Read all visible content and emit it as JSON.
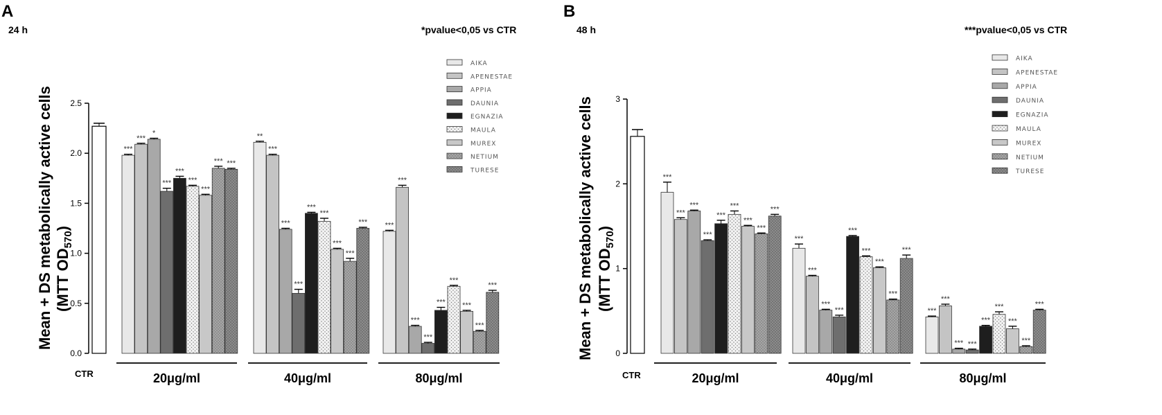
{
  "panels": [
    {
      "letter": "A",
      "time": "24 h",
      "pnote": "*pvalue<0,05 vs CTR"
    },
    {
      "letter": "B",
      "time": "48 h",
      "pnote": "***pvalue<0,05 vs CTR"
    }
  ],
  "ylabel_line1": "Mean + DS metabolically active cells",
  "ylabel_line2_main": "(MTT OD",
  "ylabel_line2_sub": "570",
  "ylabel_line2_end": ")",
  "ctr_label": "CTR",
  "series_colors": {
    "CTR": "#ffffff",
    "AIKA": "#e8e8e8",
    "APENESTAE": "#c4c4c4",
    "APPIA": "#a8a8a8",
    "DAUNIA": "#6e6e6e",
    "EGNAZIA": "#1e1e1e",
    "MAULA": "#eeeeee",
    "MUREX": "#c8c8c8",
    "NETIUM": "#9e9e9e",
    "TURESE": "#858585"
  },
  "chart_data": [
    {
      "type": "bar",
      "title": "24 h",
      "ylabel": "Mean + DS metabolically active cells (MTT OD 570)",
      "ylim": [
        0,
        2.5
      ],
      "yticks": [
        "0.0",
        "0.5",
        "1.0",
        "1.5",
        "2.0",
        "2.5"
      ],
      "control": {
        "name": "CTR",
        "value": 2.27,
        "error": 0.03
      },
      "groups": [
        "20μg/ml",
        "40μg/ml",
        "80μg/ml"
      ],
      "series": [
        {
          "name": "AIKA",
          "values": [
            1.98,
            2.11,
            1.22
          ],
          "errors": [
            0.01,
            0.01,
            0.01
          ],
          "sig": [
            "***",
            "**",
            "***"
          ]
        },
        {
          "name": "APENESTAE",
          "values": [
            2.09,
            1.98,
            1.66
          ],
          "errors": [
            0.01,
            0.01,
            0.02
          ],
          "sig": [
            "***",
            "***",
            "***"
          ]
        },
        {
          "name": "APPIA",
          "values": [
            2.14,
            1.24,
            0.27
          ],
          "errors": [
            0.01,
            0.01,
            0.01
          ],
          "sig": [
            "*",
            "***",
            "***"
          ]
        },
        {
          "name": "DAUNIA",
          "values": [
            1.62,
            0.6,
            0.1
          ],
          "errors": [
            0.03,
            0.04,
            0.01
          ],
          "sig": [
            "***",
            "***",
            "***"
          ]
        },
        {
          "name": "EGNAZIA",
          "values": [
            1.75,
            1.4,
            0.43
          ],
          "errors": [
            0.02,
            0.01,
            0.03
          ],
          "sig": [
            "***",
            "***",
            "***"
          ]
        },
        {
          "name": "MAULA",
          "values": [
            1.67,
            1.32,
            0.67
          ],
          "errors": [
            0.01,
            0.03,
            0.01
          ],
          "sig": [
            "***",
            "***",
            "***"
          ]
        },
        {
          "name": "MUREX",
          "values": [
            1.58,
            1.04,
            0.42
          ],
          "errors": [
            0.01,
            0.01,
            0.01
          ],
          "sig": [
            "***",
            "***",
            "***"
          ]
        },
        {
          "name": "NETIUM",
          "values": [
            1.85,
            0.92,
            0.22
          ],
          "errors": [
            0.02,
            0.03,
            0.01
          ],
          "sig": [
            "***",
            "***",
            "***"
          ]
        },
        {
          "name": "TURESE",
          "values": [
            1.84,
            1.25,
            0.61
          ],
          "errors": [
            0.01,
            0.01,
            0.02
          ],
          "sig": [
            "***",
            "***",
            "***"
          ]
        }
      ]
    },
    {
      "type": "bar",
      "title": "48 h",
      "ylabel": "Mean + DS metabolically active cells (MTT OD 570)",
      "ylim": [
        0,
        3
      ],
      "yticks": [
        "0",
        "1",
        "2",
        "3"
      ],
      "control": {
        "name": "CTR",
        "value": 2.56,
        "error": 0.08
      },
      "groups": [
        "20μg/ml",
        "40μg/ml",
        "80μg/ml"
      ],
      "series": [
        {
          "name": "AIKA",
          "values": [
            1.9,
            1.24,
            0.43
          ],
          "errors": [
            0.12,
            0.05,
            0.01
          ],
          "sig": [
            "***",
            "***",
            "***"
          ]
        },
        {
          "name": "APENESTAE",
          "values": [
            1.58,
            0.91,
            0.56
          ],
          "errors": [
            0.02,
            0.01,
            0.02
          ],
          "sig": [
            "***",
            "***",
            "***"
          ]
        },
        {
          "name": "APPIA",
          "values": [
            1.68,
            0.51,
            0.05
          ],
          "errors": [
            0.01,
            0.01,
            0.01
          ],
          "sig": [
            "***",
            "***",
            "***"
          ]
        },
        {
          "name": "DAUNIA",
          "values": [
            1.33,
            0.43,
            0.04
          ],
          "errors": [
            0.01,
            0.02,
            0.01
          ],
          "sig": [
            "***",
            "***",
            "***"
          ]
        },
        {
          "name": "EGNAZIA",
          "values": [
            1.53,
            1.38,
            0.32
          ],
          "errors": [
            0.04,
            0.01,
            0.01
          ],
          "sig": [
            "***",
            "***",
            "***"
          ]
        },
        {
          "name": "MAULA",
          "values": [
            1.64,
            1.14,
            0.46
          ],
          "errors": [
            0.04,
            0.01,
            0.03
          ],
          "sig": [
            "***",
            "***",
            "***"
          ]
        },
        {
          "name": "MUREX",
          "values": [
            1.5,
            1.01,
            0.29
          ],
          "errors": [
            0.01,
            0.01,
            0.03
          ],
          "sig": [
            "***",
            "***",
            "***"
          ]
        },
        {
          "name": "NETIUM",
          "values": [
            1.41,
            0.63,
            0.08
          ],
          "errors": [
            0.01,
            0.01,
            0.01
          ],
          "sig": [
            "***",
            "***",
            "***"
          ]
        },
        {
          "name": "TURESE",
          "values": [
            1.62,
            1.12,
            0.51
          ],
          "errors": [
            0.02,
            0.04,
            0.01
          ],
          "sig": [
            "***",
            "***",
            "***"
          ]
        }
      ]
    }
  ]
}
